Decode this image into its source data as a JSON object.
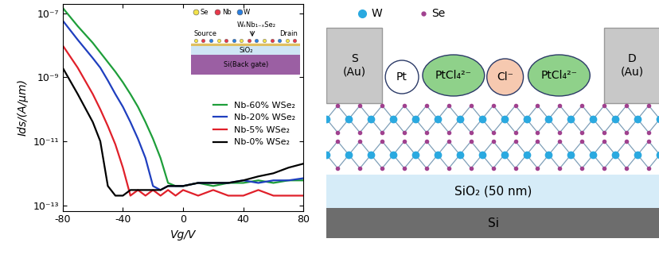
{
  "chart_data": {
    "type": "line",
    "log": "y",
    "line_style": "solid",
    "xlabel": "Vg/V",
    "ylabel": "Ids/(A/μm)",
    "x": [
      -80,
      -70,
      -60,
      -55,
      -50,
      -45,
      -40,
      -35,
      -30,
      -25,
      -20,
      -15,
      -10,
      -5,
      0,
      10,
      20,
      30,
      40,
      50,
      60,
      70,
      80
    ],
    "series": [
      {
        "name": "Nb-60% WSe₂",
        "color": "#1e9e3a",
        "values": [
          1.5e-07,
          4e-08,
          1.2e-08,
          6e-09,
          3e-09,
          1.5e-09,
          7e-10,
          3e-10,
          1.2e-10,
          4e-11,
          1.2e-11,
          3e-12,
          5e-13,
          4e-13,
          4e-13,
          5e-13,
          4e-13,
          5e-13,
          5e-13,
          6e-13,
          5e-13,
          6e-13,
          6e-13
        ]
      },
      {
        "name": "Nb-20% WSe₂",
        "color": "#1f3fbf",
        "values": [
          6e-08,
          1.5e-08,
          4e-09,
          2e-09,
          8e-10,
          3e-10,
          1.2e-10,
          4e-11,
          1.2e-11,
          3e-12,
          4e-13,
          3e-13,
          4e-13,
          4e-13,
          4e-13,
          5e-13,
          5e-13,
          5e-13,
          6e-13,
          5e-13,
          6e-13,
          6e-13,
          7e-13
        ]
      },
      {
        "name": "Nb-5% WSe₂",
        "color": "#e0202a",
        "values": [
          1e-08,
          2e-09,
          3e-10,
          1e-10,
          3e-11,
          8e-12,
          1.5e-12,
          2e-13,
          3e-13,
          2e-13,
          3e-13,
          2e-13,
          3e-13,
          2e-13,
          3e-13,
          2e-13,
          3e-13,
          2e-13,
          2e-13,
          3e-13,
          2e-13,
          2e-13,
          2e-13
        ]
      },
      {
        "name": "Nb-0% WSe₂",
        "color": "#000000",
        "values": [
          2e-09,
          3e-10,
          4e-11,
          1e-11,
          4e-13,
          2e-13,
          2e-13,
          3e-13,
          3e-13,
          3e-13,
          3e-13,
          3e-13,
          4e-13,
          4e-13,
          4e-13,
          5e-13,
          5e-13,
          5e-13,
          6e-13,
          8e-13,
          1e-12,
          1.5e-12,
          2e-12
        ]
      }
    ],
    "xlim": [
      -80,
      80
    ],
    "xticks": [
      -80,
      -40,
      0,
      40,
      80
    ],
    "ylim": [
      6.7e-14,
      2e-07
    ],
    "yticks": [
      {
        "value": 1e-13,
        "label": "10⁻¹³"
      },
      {
        "value": 1e-11,
        "label": "10⁻¹¹"
      },
      {
        "value": 1e-09,
        "label": "10⁻⁹"
      },
      {
        "value": 1e-07,
        "label": "10⁻⁷"
      }
    ],
    "legend": "center right",
    "annotations": [
      "Se",
      "Nb",
      "W",
      "WₓNb₁₋ₓSe₂",
      "Source",
      "Drain",
      "SiO₂",
      "Si(Back gate)"
    ]
  },
  "diagram": {
    "legend": [
      "W",
      "Se"
    ],
    "electrodes": [
      "S\n(Au)",
      "D\n(Au)"
    ],
    "adsorbates": [
      "Pt",
      "PtCl₄²⁻",
      "Cl⁻",
      "PtCl₄²⁻"
    ],
    "layers": [
      "SiO₂ (50 nm)",
      "Si"
    ]
  }
}
